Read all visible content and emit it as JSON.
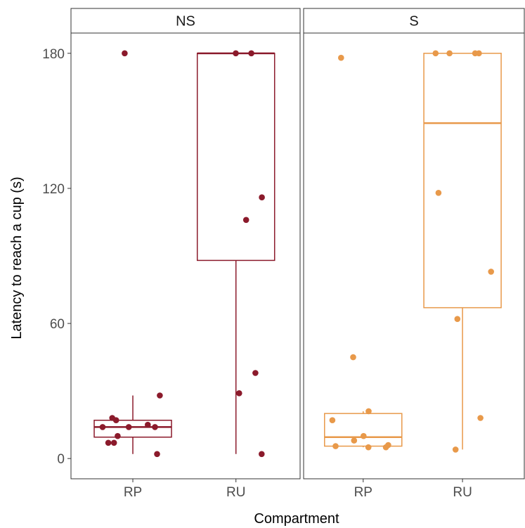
{
  "chart_data": {
    "type": "boxplot",
    "xlabel": "Compartment",
    "ylabel": "Latency to reach a cup (s)",
    "yticks": [
      0,
      60,
      120,
      180
    ],
    "ylim": [
      -9,
      189
    ],
    "categories": [
      "RP",
      "RU"
    ],
    "grid": false,
    "legend": "none",
    "panels": [
      {
        "name": "NS",
        "color": "#8b1a2b",
        "groups": [
          {
            "category": "RP",
            "box": {
              "whisker_low": 2,
              "q1": 9.5,
              "median": 14,
              "q3": 17,
              "whisker_high": 28
            },
            "points": [
              180,
              28,
              18,
              17,
              15,
              14,
              14,
              14,
              10,
              7,
              7,
              2
            ]
          },
          {
            "category": "RU",
            "box": {
              "whisker_low": 2,
              "q1": 88,
              "median": 180,
              "q3": 180,
              "whisker_high": 180
            },
            "points": [
              180,
              180,
              116,
              106,
              38,
              29,
              2
            ]
          }
        ]
      },
      {
        "name": "S",
        "color": "#e8994a",
        "groups": [
          {
            "category": "RP",
            "box": {
              "whisker_low": 5,
              "q1": 5.5,
              "median": 9.5,
              "q3": 20,
              "whisker_high": 21
            },
            "points": [
              178,
              45,
              21,
              17,
              10,
              8,
              6,
              5.5,
              5,
              5
            ]
          },
          {
            "category": "RU",
            "box": {
              "whisker_low": 4,
              "q1": 67,
              "median": 149,
              "q3": 180,
              "whisker_high": 180
            },
            "points": [
              180,
              180,
              180,
              180,
              118,
              83,
              62,
              18,
              4
            ]
          }
        ]
      }
    ]
  }
}
